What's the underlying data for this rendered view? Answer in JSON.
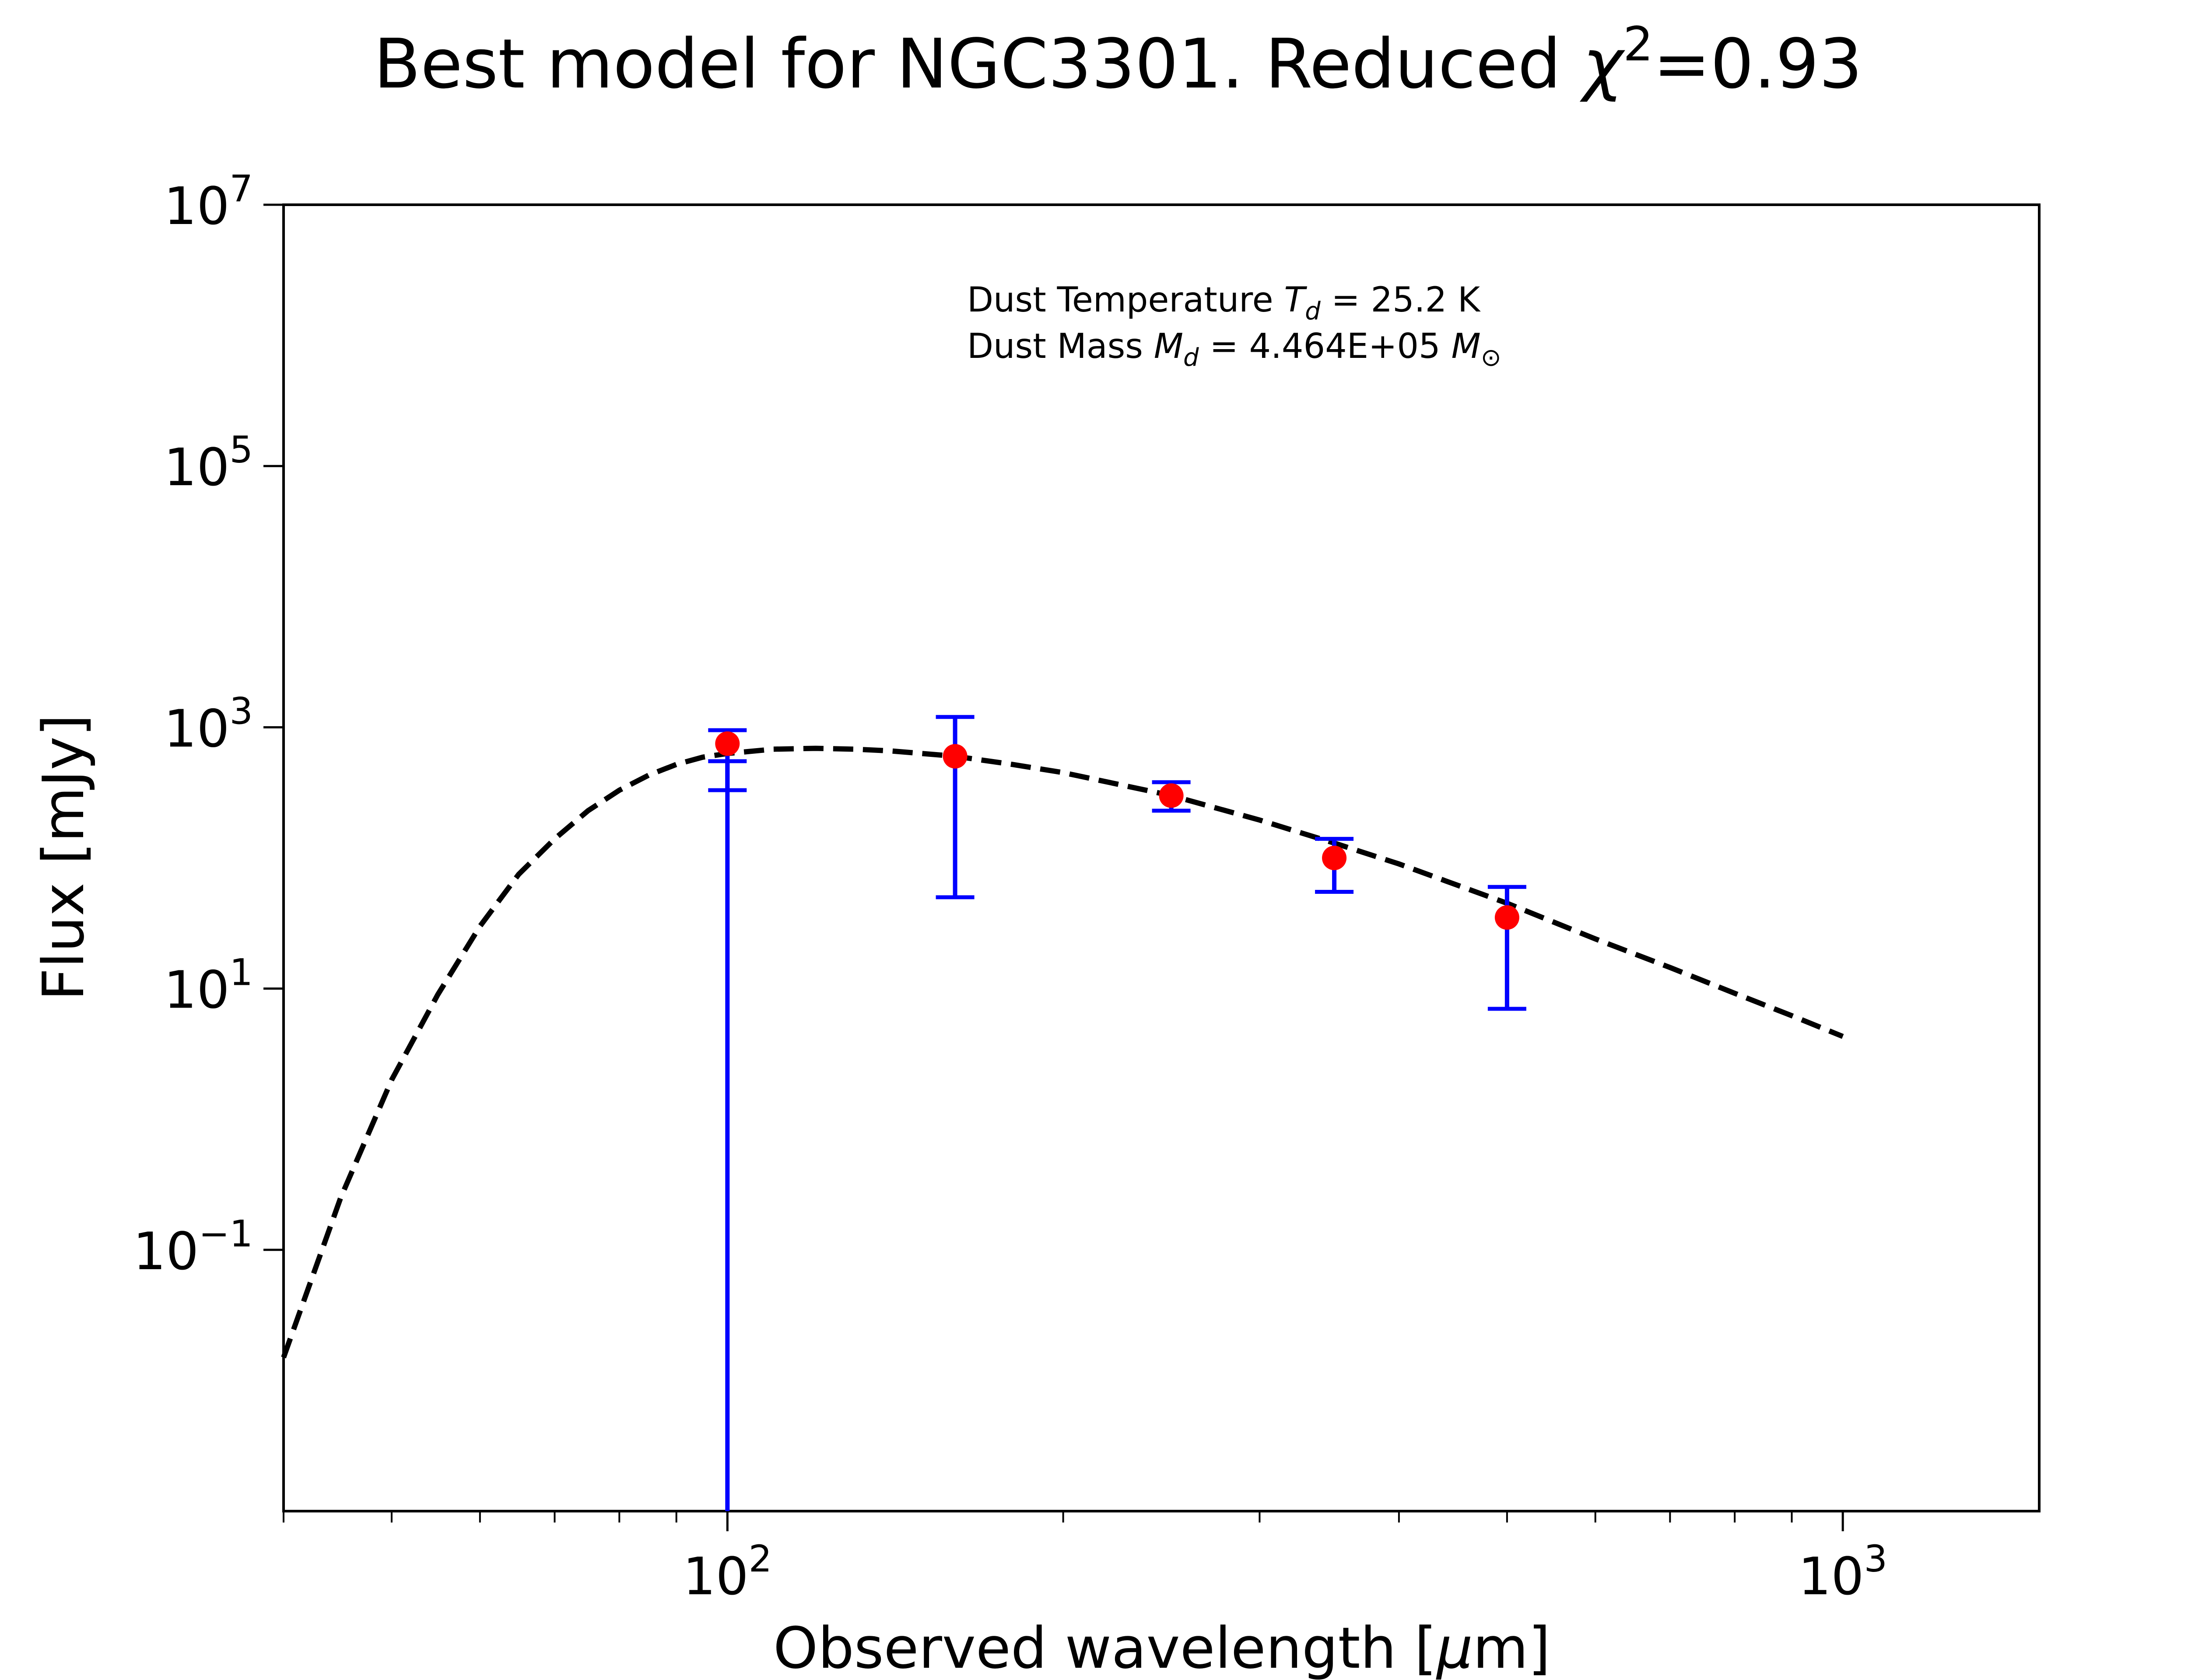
{
  "chart_data": {
    "type": "scatter",
    "title": {
      "prefix": "Best model for NGC3301. Reduced ",
      "symbol": "χ",
      "superscript": "2",
      "suffix": "=0.93"
    },
    "xlabel": {
      "prefix": "Observed wavelength [",
      "symbol": "μ",
      "suffix": "m]"
    },
    "ylabel": "Flux [mJy]",
    "x_scale": "log",
    "y_scale": "log",
    "xlim": [
      40,
      1500
    ],
    "ylim": [
      0.001,
      10000000
    ],
    "x_ticks": [
      {
        "value": 100,
        "base": "10",
        "exp": "2"
      },
      {
        "value": 1000,
        "base": "10",
        "exp": "3"
      }
    ],
    "y_ticks": [
      {
        "value": 0.1,
        "base": "10",
        "exp": "−1"
      },
      {
        "value": 10,
        "base": "10",
        "exp": "1"
      },
      {
        "value": 1000,
        "base": "10",
        "exp": "3"
      },
      {
        "value": 100000,
        "base": "10",
        "exp": "5"
      },
      {
        "value": 10000000,
        "base": "10",
        "exp": "7"
      }
    ],
    "grid": false,
    "annotation": {
      "line1_prefix": "Dust Temperature ",
      "line1_sym": "T",
      "line1_sub": "d",
      "line1_suffix": " = 25.2 K",
      "line2_prefix": "Dust Mass ",
      "line2_sym": "M",
      "line2_sub": "d",
      "line2_mid": " = 4.464E+05 ",
      "line2_sym2": "M",
      "line2_sub2": "⊙"
    },
    "series": [
      {
        "type": "line",
        "style": "dashed",
        "color": "#000000",
        "x": [
          40,
          45,
          50,
          55,
          60,
          65,
          70,
          75,
          80,
          85,
          90,
          95,
          100,
          110,
          120,
          130,
          140,
          160,
          180,
          200,
          250,
          300,
          350,
          400,
          500,
          600,
          700,
          800,
          900,
          1000
        ],
        "y": [
          0.015,
          0.25,
          2.0,
          9.0,
          30,
          75,
          140,
          230,
          330,
          430,
          520,
          590,
          630,
          680,
          690,
          680,
          660,
          600,
          520,
          450,
          300,
          195,
          130,
          90,
          45,
          24,
          14.5,
          9.2,
          6.2,
          4.3
        ]
      },
      {
        "type": "errorbar",
        "color": "#ff0000",
        "errcolor": "#0000ff",
        "points": [
          {
            "x": 100,
            "y": 750,
            "ylo": 0.001,
            "yhi": 950,
            "err_width": 20
          },
          {
            "x": 100,
            "y": 750,
            "ylo": 550,
            "yhi": 330,
            "err_width": 20
          },
          {
            "x": 160,
            "y": 600,
            "ylo": 50,
            "yhi": 1200
          },
          {
            "x": 250,
            "y": 300,
            "ylo": 230,
            "yhi": 380
          },
          {
            "x": 350,
            "y": 100,
            "ylo": 55,
            "yhi": 140
          },
          {
            "x": 500,
            "y": 35,
            "ylo": 7,
            "yhi": 60
          }
        ]
      }
    ]
  }
}
